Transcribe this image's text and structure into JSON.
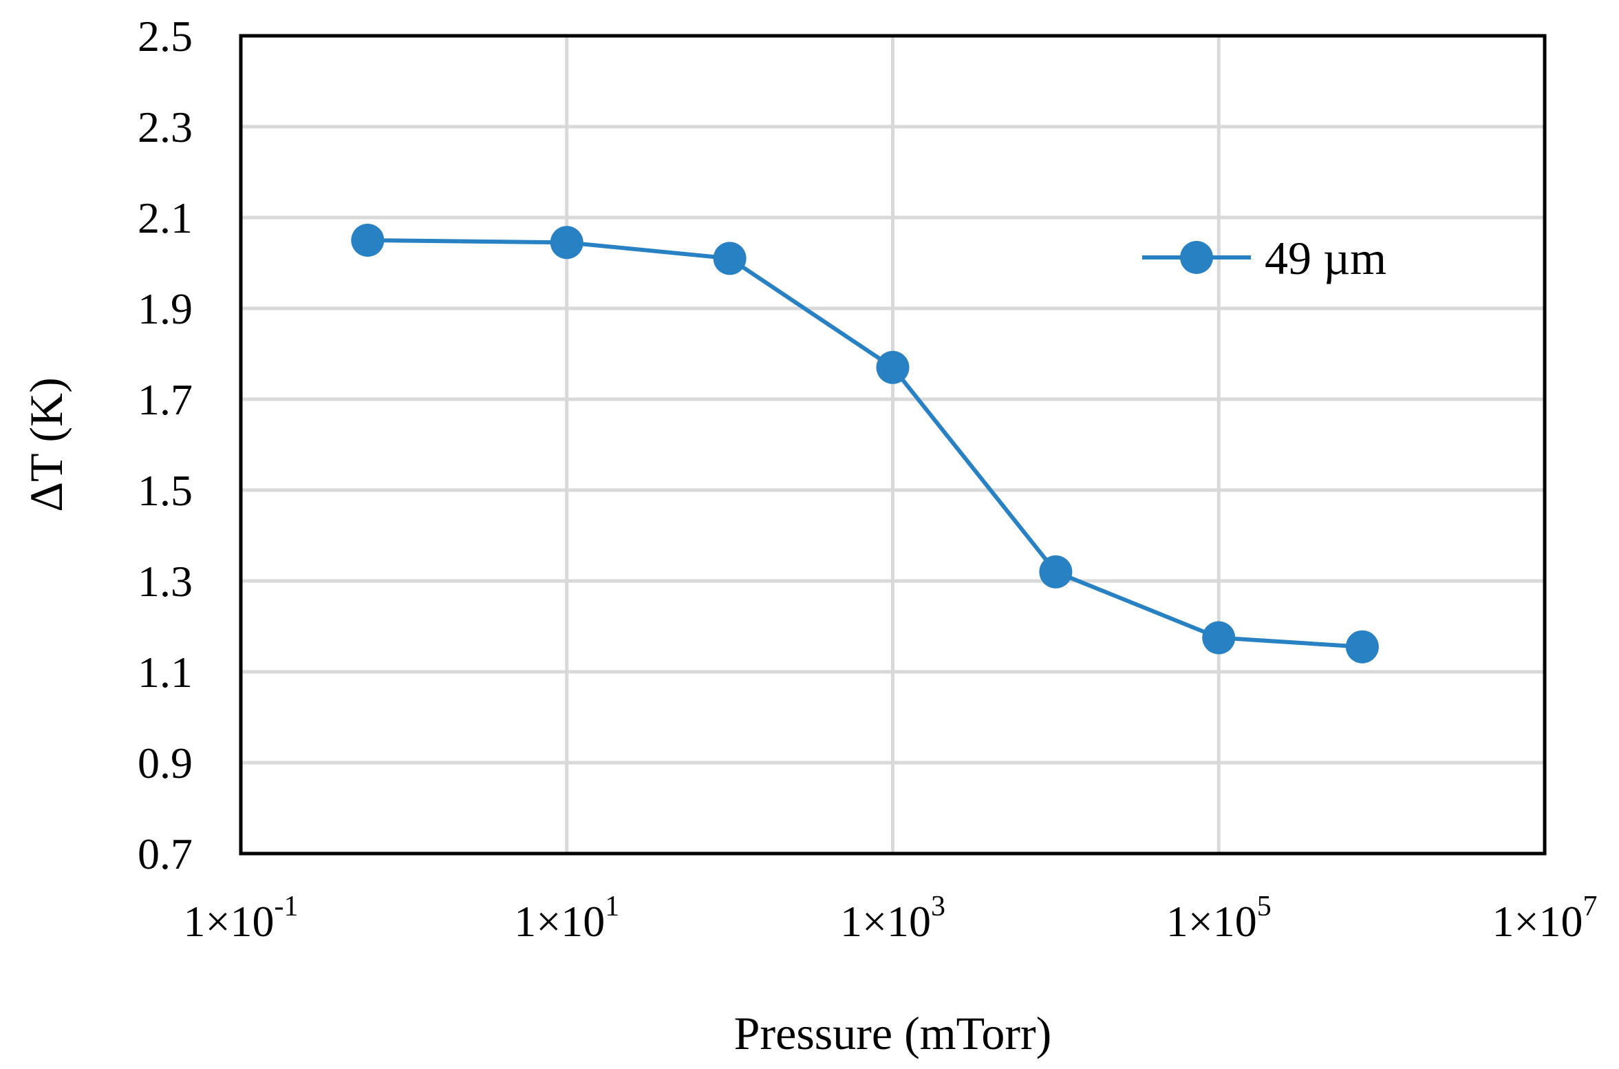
{
  "colors": {
    "series": "#2781C3",
    "grid": "#D9D9D9",
    "frame": "#000000"
  },
  "chart_data": {
    "type": "scatter",
    "title": "",
    "xlabel": "Pressure (mTorr)",
    "ylabel": "ΔT (K)",
    "xscale": "log",
    "xlim": [
      0.1,
      10000000
    ],
    "ylim": [
      0.7,
      2.5
    ],
    "grid": true,
    "legend_position": "top-right",
    "y_ticks": [
      "0.7",
      "0.9",
      "1.1",
      "1.3",
      "1.5",
      "1.7",
      "1.9",
      "2.1",
      "2.3",
      "2.5"
    ],
    "x_ticks": [
      {
        "base": "1×10",
        "exp": "-1",
        "value": 0.1
      },
      {
        "base": "1×10",
        "exp": "1",
        "value": 10
      },
      {
        "base": "1×10",
        "exp": "3",
        "value": 1000
      },
      {
        "base": "1×10",
        "exp": "5",
        "value": 100000
      },
      {
        "base": "1×10",
        "exp": "7",
        "value": 10000000
      }
    ],
    "series": [
      {
        "name": "49 µm",
        "x": [
          0.6,
          10,
          100,
          1000,
          10000,
          100000,
          760000
        ],
        "y": [
          2.05,
          2.045,
          2.01,
          1.77,
          1.32,
          1.175,
          1.155
        ]
      }
    ]
  }
}
